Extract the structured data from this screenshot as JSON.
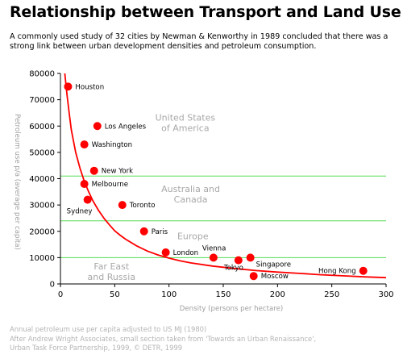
{
  "header": {
    "title": "Relationship between Transport and Land Use",
    "subtitle": "A commonly used study of 32 cities by Newman & Kenworthy in 1989 concluded that there was a strong link between urban development densities and petroleum consumption."
  },
  "footnote": {
    "lines": [
      "Annual petroleum use per capita adjusted to US MJ (1980)",
      "After Andrew Wright Associates, small section taken from 'Towards an Urban Renaissance',",
      "Urban Task Force Partnership, 1999, © DETR, 1999"
    ]
  },
  "chart_data": {
    "type": "scatter",
    "xlabel": "Density (persons per hectare)",
    "ylabel": "Petroleum use p/a (average per capita)",
    "xlim": [
      0,
      300
    ],
    "ylim": [
      0,
      80000
    ],
    "xticks": [
      0,
      50,
      100,
      150,
      200,
      250,
      300
    ],
    "yticks": [
      0,
      10000,
      20000,
      30000,
      40000,
      50000,
      60000,
      70000,
      80000
    ],
    "grid": false,
    "colors": {
      "points": "#ff0000",
      "curve": "#ff0000",
      "region_lines": "#55dd55",
      "region_text": "#a8a8a8"
    },
    "points": [
      {
        "name": "Houston",
        "x": 7,
        "y": 75000,
        "label_pos": "right"
      },
      {
        "name": "Los Angeles",
        "x": 34,
        "y": 60000,
        "label_pos": "right"
      },
      {
        "name": "Washington",
        "x": 22,
        "y": 53000,
        "label_pos": "right"
      },
      {
        "name": "New York",
        "x": 31,
        "y": 43000,
        "label_pos": "right"
      },
      {
        "name": "Melbourne",
        "x": 22,
        "y": 38000,
        "label_pos": "right"
      },
      {
        "name": "Sydney",
        "x": 25,
        "y": 32000,
        "label_pos": "below-left"
      },
      {
        "name": "Toronto",
        "x": 57,
        "y": 30000,
        "label_pos": "right"
      },
      {
        "name": "Paris",
        "x": 77,
        "y": 20000,
        "label_pos": "right"
      },
      {
        "name": "London",
        "x": 97,
        "y": 12000,
        "label_pos": "right"
      },
      {
        "name": "Vienna",
        "x": 141,
        "y": 10000,
        "label_pos": "above-right"
      },
      {
        "name": "Tokyo",
        "x": 164,
        "y": 9000,
        "label_pos": "below-left"
      },
      {
        "name": "Singapore",
        "x": 175,
        "y": 10000,
        "label_pos": "below-right"
      },
      {
        "name": "Moscow",
        "x": 178,
        "y": 3000,
        "label_pos": "right"
      },
      {
        "name": "Hong Kong",
        "x": 279,
        "y": 5000,
        "label_pos": "left"
      }
    ],
    "trend_curve": [
      [
        4,
        80000
      ],
      [
        6,
        72000
      ],
      [
        8,
        65000
      ],
      [
        10,
        58500
      ],
      [
        14,
        50000
      ],
      [
        18,
        44000
      ],
      [
        22,
        39000
      ],
      [
        26,
        35000
      ],
      [
        30,
        31500
      ],
      [
        35,
        28000
      ],
      [
        40,
        25000
      ],
      [
        45,
        22500
      ],
      [
        50,
        20200
      ],
      [
        55,
        18500
      ],
      [
        60,
        17000
      ],
      [
        70,
        14500
      ],
      [
        80,
        12500
      ],
      [
        90,
        11000
      ],
      [
        100,
        9800
      ],
      [
        110,
        8800
      ],
      [
        120,
        8000
      ],
      [
        140,
        6800
      ],
      [
        160,
        5900
      ],
      [
        180,
        5100
      ],
      [
        200,
        4500
      ],
      [
        220,
        4000
      ],
      [
        240,
        3500
      ],
      [
        260,
        3100
      ],
      [
        280,
        2700
      ],
      [
        300,
        2400
      ]
    ],
    "region_lines": [
      41000,
      24000,
      10000
    ],
    "regions": [
      {
        "lines": [
          "United States",
          "of America"
        ],
        "x": 115,
        "y": 62000
      },
      {
        "lines": [
          "Australia and",
          "Canada"
        ],
        "x": 120,
        "y": 35000
      },
      {
        "lines": [
          "Europe"
        ],
        "x": 122,
        "y": 17000
      },
      {
        "lines": [
          "Far East",
          "and Russia"
        ],
        "x": 47,
        "y": 5500
      }
    ]
  }
}
